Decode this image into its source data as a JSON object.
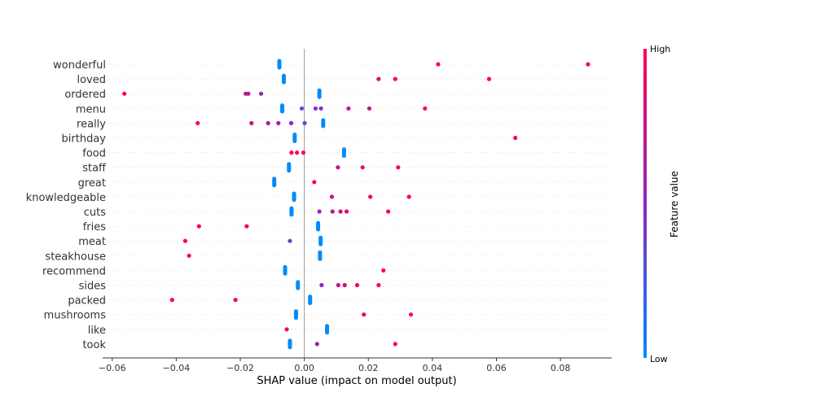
{
  "chart_data": {
    "type": "scatter",
    "subtype": "shap-beeswarm",
    "title": "",
    "xlabel": "SHAP value (impact on model output)",
    "ylabel": "",
    "xlim": [
      -0.063,
      0.096
    ],
    "xticks": [
      -0.06,
      -0.04,
      -0.02,
      0.0,
      0.02,
      0.04,
      0.06,
      0.08
    ],
    "xtick_labels": [
      "−0.06",
      "−0.04",
      "−0.02",
      "0.00",
      "0.02",
      "0.04",
      "0.06",
      "0.08"
    ],
    "zero_line": 0.0,
    "colorbar": {
      "title": "Feature value",
      "high_label": "High",
      "low_label": "Low",
      "high_color": "#ff0052",
      "mid_color": "#8a26c0",
      "low_color": "#008bfb"
    },
    "features": [
      {
        "name": "wonderful",
        "points": [
          {
            "x": -0.0078,
            "v": 0.0,
            "n": 20
          },
          {
            "x": 0.0418,
            "v": 1.0
          },
          {
            "x": 0.0886,
            "v": 1.0
          }
        ]
      },
      {
        "name": "loved",
        "points": [
          {
            "x": -0.0064,
            "v": 0.0,
            "n": 20
          },
          {
            "x": 0.0232,
            "v": 0.85
          },
          {
            "x": 0.0284,
            "v": 0.9
          },
          {
            "x": 0.0577,
            "v": 1.0
          }
        ]
      },
      {
        "name": "ordered",
        "points": [
          {
            "x": -0.0562,
            "v": 1.0
          },
          {
            "x": -0.0183,
            "v": 0.7
          },
          {
            "x": -0.0175,
            "v": 0.7
          },
          {
            "x": -0.0135,
            "v": 0.55
          },
          {
            "x": 0.0047,
            "v": 0.0,
            "n": 20
          }
        ]
      },
      {
        "name": "menu",
        "points": [
          {
            "x": -0.0069,
            "v": 0.0,
            "n": 16
          },
          {
            "x": -0.0008,
            "v": 0.3
          },
          {
            "x": 0.0035,
            "v": 0.5
          },
          {
            "x": 0.0052,
            "v": 0.4
          },
          {
            "x": 0.0138,
            "v": 0.75
          },
          {
            "x": 0.0203,
            "v": 0.8
          },
          {
            "x": 0.0377,
            "v": 1.0
          }
        ]
      },
      {
        "name": "really",
        "points": [
          {
            "x": -0.0333,
            "v": 1.0
          },
          {
            "x": -0.0165,
            "v": 0.8
          },
          {
            "x": -0.0113,
            "v": 0.65
          },
          {
            "x": -0.0081,
            "v": 0.6
          },
          {
            "x": -0.0041,
            "v": 0.5
          },
          {
            "x": 0.0001,
            "v": 0.3
          },
          {
            "x": 0.0059,
            "v": 0.0,
            "n": 14
          }
        ]
      },
      {
        "name": "birthday",
        "points": [
          {
            "x": -0.003,
            "v": 0.0,
            "n": 20
          },
          {
            "x": 0.0659,
            "v": 1.0
          }
        ]
      },
      {
        "name": "food",
        "points": [
          {
            "x": -0.004,
            "v": 1.0
          },
          {
            "x": -0.0023,
            "v": 1.0
          },
          {
            "x": -0.0003,
            "v": 1.0
          },
          {
            "x": 0.0124,
            "v": 0.0,
            "n": 20
          }
        ]
      },
      {
        "name": "staff",
        "points": [
          {
            "x": -0.0048,
            "v": 0.0,
            "n": 20
          },
          {
            "x": 0.0105,
            "v": 0.8
          },
          {
            "x": 0.0182,
            "v": 0.9
          },
          {
            "x": 0.0293,
            "v": 1.0
          }
        ]
      },
      {
        "name": "great",
        "points": [
          {
            "x": -0.0094,
            "v": 0.0,
            "n": 20
          },
          {
            "x": 0.0031,
            "v": 1.0
          }
        ]
      },
      {
        "name": "knowledgeable",
        "points": [
          {
            "x": -0.0032,
            "v": 0.0,
            "n": 18
          },
          {
            "x": 0.0086,
            "v": 0.75
          },
          {
            "x": 0.0206,
            "v": 0.9
          },
          {
            "x": 0.0327,
            "v": 1.0
          }
        ]
      },
      {
        "name": "cuts",
        "points": [
          {
            "x": -0.004,
            "v": 0.0,
            "n": 18
          },
          {
            "x": 0.0047,
            "v": 0.55
          },
          {
            "x": 0.0088,
            "v": 0.7
          },
          {
            "x": 0.0113,
            "v": 0.8
          },
          {
            "x": 0.0132,
            "v": 0.9
          },
          {
            "x": 0.0262,
            "v": 1.0
          }
        ]
      },
      {
        "name": "fries",
        "points": [
          {
            "x": -0.0329,
            "v": 1.0
          },
          {
            "x": -0.018,
            "v": 0.95
          },
          {
            "x": 0.0043,
            "v": 0.0,
            "n": 20
          }
        ]
      },
      {
        "name": "meat",
        "points": [
          {
            "x": -0.0372,
            "v": 1.0
          },
          {
            "x": -0.0045,
            "v": 0.4
          },
          {
            "x": 0.0051,
            "v": 0.0,
            "n": 20
          }
        ]
      },
      {
        "name": "steakhouse",
        "points": [
          {
            "x": -0.036,
            "v": 1.0
          },
          {
            "x": 0.0049,
            "v": 0.0,
            "n": 20
          }
        ]
      },
      {
        "name": "recommend",
        "points": [
          {
            "x": -0.006,
            "v": 0.0,
            "n": 20
          },
          {
            "x": 0.0247,
            "v": 1.0
          }
        ]
      },
      {
        "name": "sides",
        "points": [
          {
            "x": -0.002,
            "v": 0.0,
            "n": 16
          },
          {
            "x": 0.0054,
            "v": 0.5
          },
          {
            "x": 0.0106,
            "v": 0.75
          },
          {
            "x": 0.0126,
            "v": 0.8
          },
          {
            "x": 0.0165,
            "v": 0.9
          },
          {
            "x": 0.0232,
            "v": 1.0
          }
        ]
      },
      {
        "name": "packed",
        "points": [
          {
            "x": -0.0413,
            "v": 1.0
          },
          {
            "x": -0.0215,
            "v": 0.95
          },
          {
            "x": 0.0018,
            "v": 0.0,
            "n": 20
          }
        ]
      },
      {
        "name": "mushrooms",
        "points": [
          {
            "x": -0.0026,
            "v": 0.0,
            "n": 20
          },
          {
            "x": 0.0186,
            "v": 0.9
          },
          {
            "x": 0.0333,
            "v": 1.0
          }
        ]
      },
      {
        "name": "like",
        "points": [
          {
            "x": -0.0055,
            "v": 1.0
          },
          {
            "x": 0.0071,
            "v": 0.0,
            "n": 20
          }
        ]
      },
      {
        "name": "took",
        "points": [
          {
            "x": -0.0045,
            "v": 0.0,
            "n": 20
          },
          {
            "x": 0.004,
            "v": 0.6
          },
          {
            "x": 0.0284,
            "v": 1.0
          }
        ]
      }
    ]
  }
}
